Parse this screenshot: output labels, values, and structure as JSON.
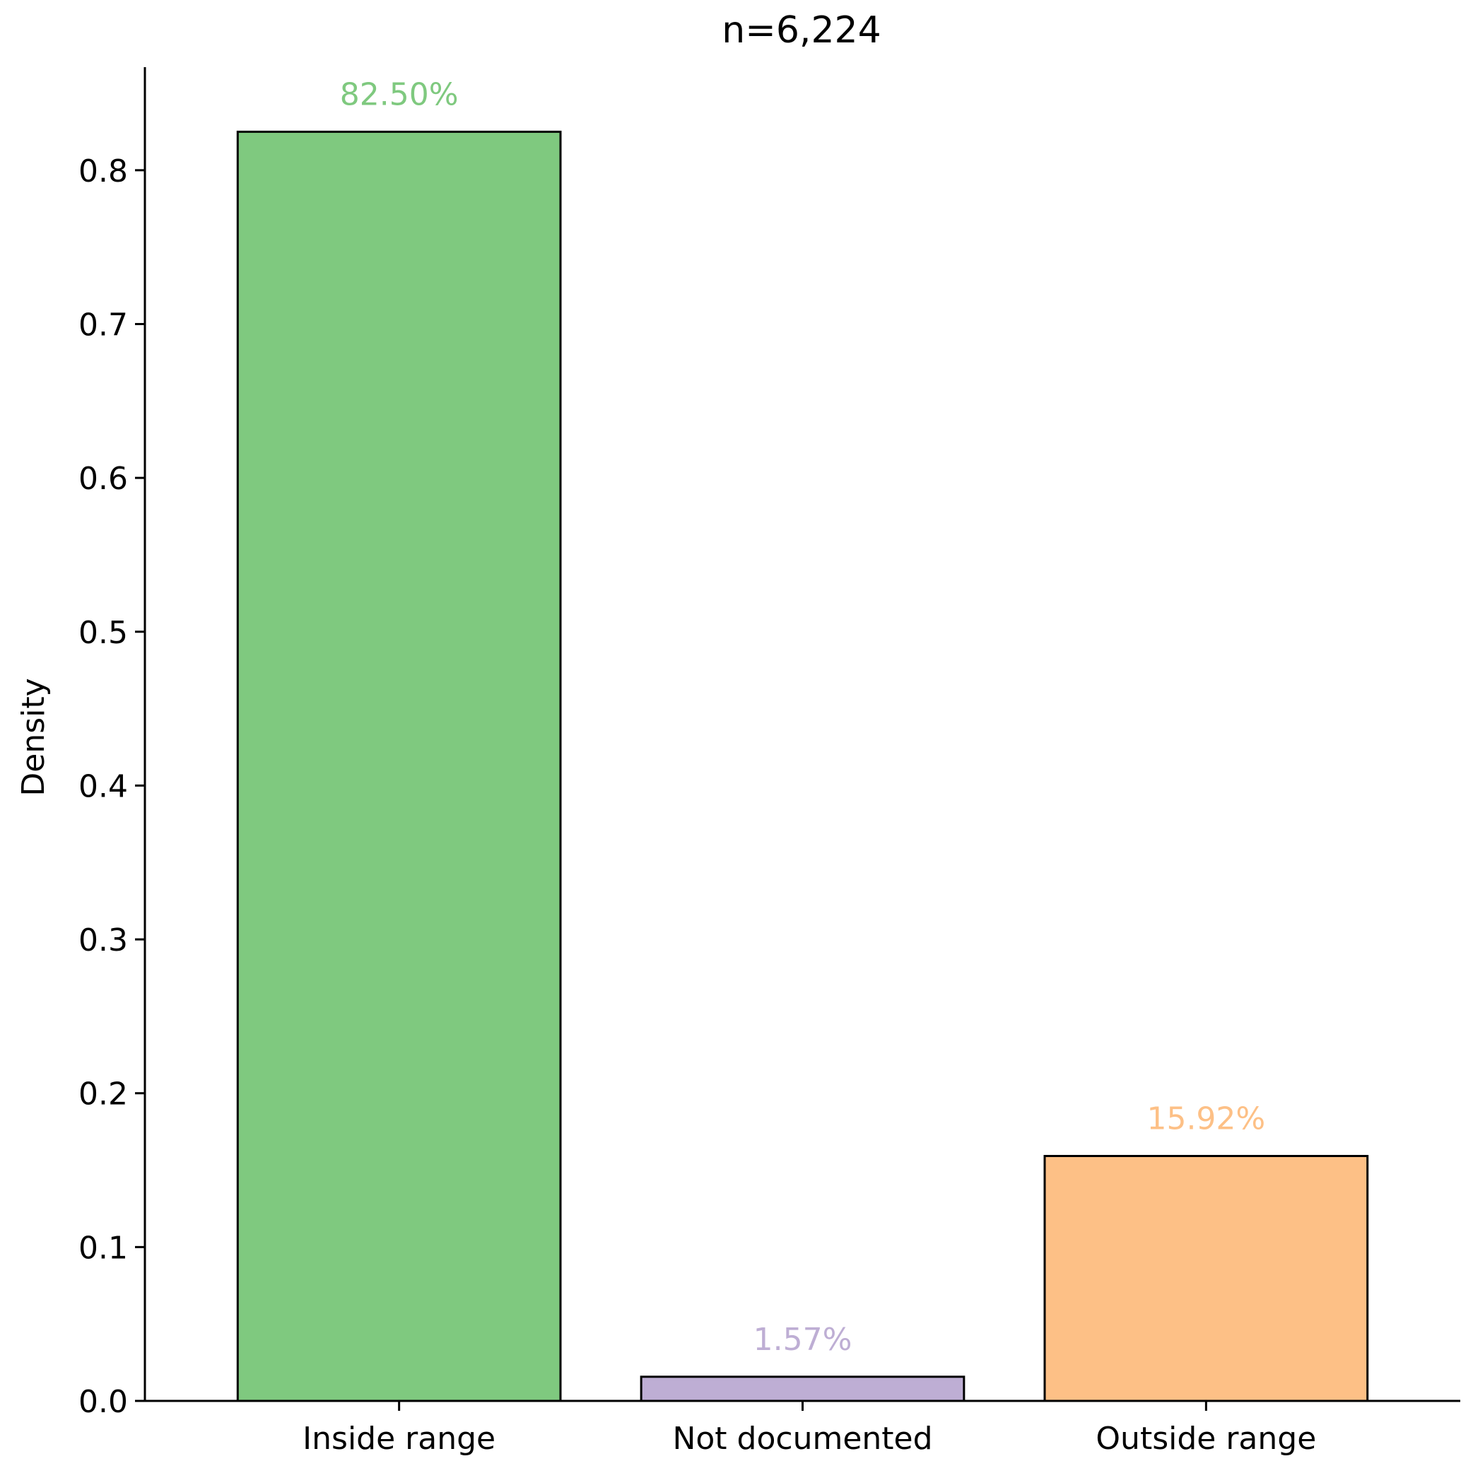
{
  "chart_data": {
    "type": "bar",
    "title": "n=6,224",
    "xlabel": "",
    "ylabel": "Density",
    "ylim": [
      0,
      0.867
    ],
    "yticks": [
      0.0,
      0.1,
      0.2,
      0.3,
      0.4,
      0.5,
      0.6,
      0.7,
      0.8
    ],
    "ytick_labels": [
      "0.0",
      "0.1",
      "0.2",
      "0.3",
      "0.4",
      "0.5",
      "0.6",
      "0.7",
      "0.8"
    ],
    "categories": [
      "Inside range",
      "Not documented",
      "Outside range"
    ],
    "values": [
      0.825,
      0.0157,
      0.1592
    ],
    "bar_labels": [
      "82.50%",
      "1.57%",
      "15.92%"
    ],
    "colors": [
      "#7fc97f",
      "#beaed4",
      "#fdc086"
    ],
    "edge_color": "#000000",
    "grid": false
  }
}
